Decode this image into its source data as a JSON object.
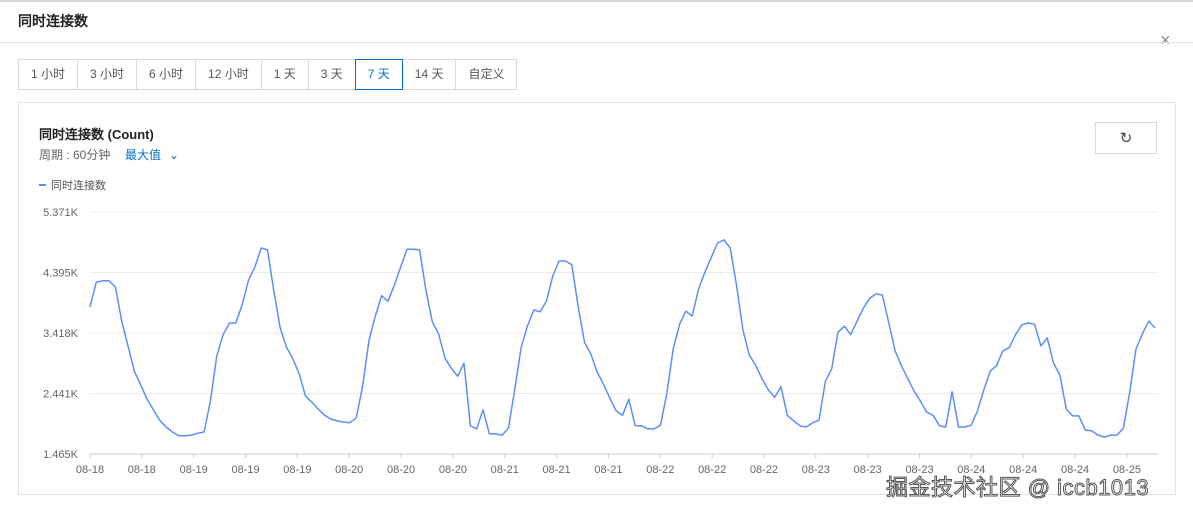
{
  "dialog": {
    "title": "同时连接数",
    "close_icon": "close-icon"
  },
  "time_ranges": {
    "options": [
      "1 小时",
      "3 小时",
      "6 小时",
      "12 小时",
      "1 天",
      "3 天",
      "7 天",
      "14 天",
      "自定义"
    ],
    "selected": "7 天"
  },
  "card": {
    "title": "同时连接数 (Count)",
    "period": "周期 : 60分钟",
    "aggregation": "最大值",
    "refresh_icon": "refresh-icon"
  },
  "watermark": "掘金技术社区 @ iccb1013",
  "colors": {
    "accent": "#0070cc",
    "series": "#5b8ff9"
  },
  "chart_data": {
    "type": "line",
    "title": "同时连接数 (Count)",
    "legend": [
      "同时连接数"
    ],
    "legend_position": "top-left",
    "grid": true,
    "y_unit": "K",
    "ylim": [
      1.465,
      5.371
    ],
    "y_ticks": [
      "1.465K",
      "2.441K",
      "3.418K",
      "4.395K",
      "5.371K"
    ],
    "x_ticks": [
      "08-18",
      "08-18",
      "08-19",
      "08-19",
      "08-19",
      "08-20",
      "08-20",
      "08-20",
      "08-21",
      "08-21",
      "08-21",
      "08-22",
      "08-22",
      "08-22",
      "08-23",
      "08-23",
      "08-23",
      "08-24",
      "08-24",
      "08-24",
      "08-25"
    ],
    "series": [
      {
        "name": "同时连接数",
        "values": [
          3.84,
          4.24,
          4.26,
          4.26,
          4.16,
          3.61,
          3.21,
          2.8,
          2.58,
          2.35,
          2.18,
          2.01,
          1.9,
          1.82,
          1.76,
          1.76,
          1.77,
          1.8,
          1.82,
          2.32,
          3.05,
          3.39,
          3.58,
          3.58,
          3.87,
          4.27,
          4.48,
          4.79,
          4.76,
          4.1,
          3.5,
          3.19,
          3.0,
          2.76,
          2.4,
          2.3,
          2.19,
          2.09,
          2.03,
          2.0,
          1.98,
          1.97,
          2.05,
          2.56,
          3.29,
          3.69,
          4.02,
          3.93,
          4.19,
          4.48,
          4.77,
          4.77,
          4.76,
          4.1,
          3.6,
          3.4,
          3.01,
          2.85,
          2.72,
          2.93,
          1.92,
          1.87,
          2.18,
          1.79,
          1.79,
          1.77,
          1.88,
          2.5,
          3.18,
          3.53,
          3.79,
          3.76,
          3.93,
          4.34,
          4.58,
          4.58,
          4.52,
          3.85,
          3.27,
          3.08,
          2.79,
          2.59,
          2.37,
          2.16,
          2.09,
          2.35,
          1.92,
          1.92,
          1.87,
          1.87,
          1.93,
          2.45,
          3.16,
          3.56,
          3.77,
          3.69,
          4.13,
          4.4,
          4.64,
          4.87,
          4.92,
          4.79,
          4.18,
          3.47,
          3.06,
          2.9,
          2.68,
          2.5,
          2.38,
          2.55,
          2.09,
          2.0,
          1.92,
          1.9,
          1.97,
          2.01,
          2.64,
          2.84,
          3.43,
          3.53,
          3.39,
          3.61,
          3.82,
          3.98,
          4.05,
          4.03,
          3.58,
          3.13,
          2.89,
          2.68,
          2.48,
          2.32,
          2.14,
          2.09,
          1.92,
          1.9,
          2.47,
          1.9,
          1.9,
          1.93,
          2.16,
          2.5,
          2.8,
          2.89,
          3.13,
          3.18,
          3.39,
          3.55,
          3.58,
          3.56,
          3.21,
          3.34,
          2.93,
          2.74,
          2.19,
          2.08,
          2.08,
          1.85,
          1.84,
          1.77,
          1.74,
          1.77,
          1.77,
          1.88,
          2.45,
          3.16,
          3.4,
          3.61,
          3.5
        ]
      }
    ]
  }
}
